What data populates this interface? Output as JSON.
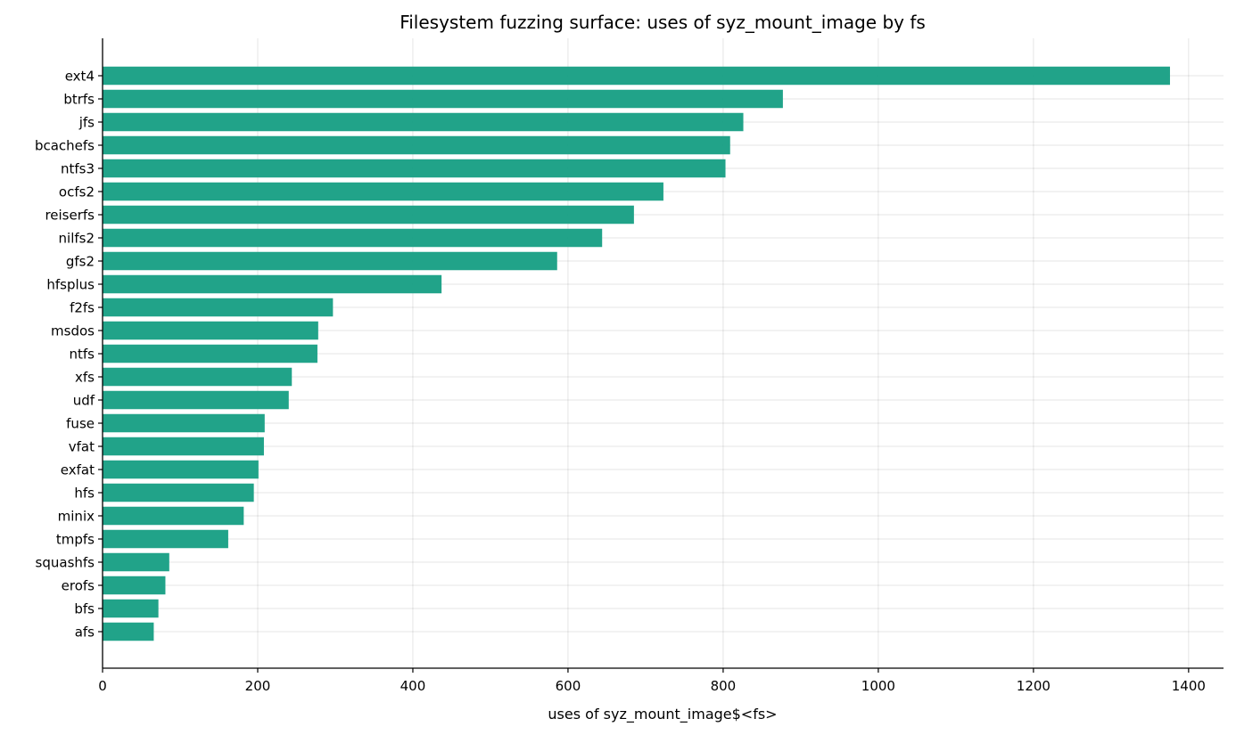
{
  "chart_data": {
    "type": "bar",
    "orientation": "horizontal",
    "title": "Filesystem fuzzing surface: uses of syz_mount_image by fs",
    "xlabel": "uses of syz_mount_image$<fs>",
    "ylabel": "",
    "xlim": [
      0,
      1445
    ],
    "xticks": [
      0,
      200,
      400,
      600,
      800,
      1000,
      1200,
      1400
    ],
    "grid": true,
    "bar_color": "#1aa085",
    "categories": [
      "ext4",
      "btrfs",
      "jfs",
      "bcachefs",
      "ntfs3",
      "ocfs2",
      "reiserfs",
      "nilfs2",
      "gfs2",
      "hfsplus",
      "f2fs",
      "msdos",
      "ntfs",
      "xfs",
      "udf",
      "fuse",
      "vfat",
      "exfat",
      "hfs",
      "minix",
      "tmpfs",
      "squashfs",
      "erofs",
      "bfs",
      "afs"
    ],
    "values": [
      1376,
      877,
      826,
      809,
      803,
      723,
      685,
      644,
      586,
      437,
      297,
      278,
      277,
      244,
      240,
      209,
      208,
      201,
      195,
      182,
      162,
      86,
      81,
      72,
      66
    ]
  }
}
